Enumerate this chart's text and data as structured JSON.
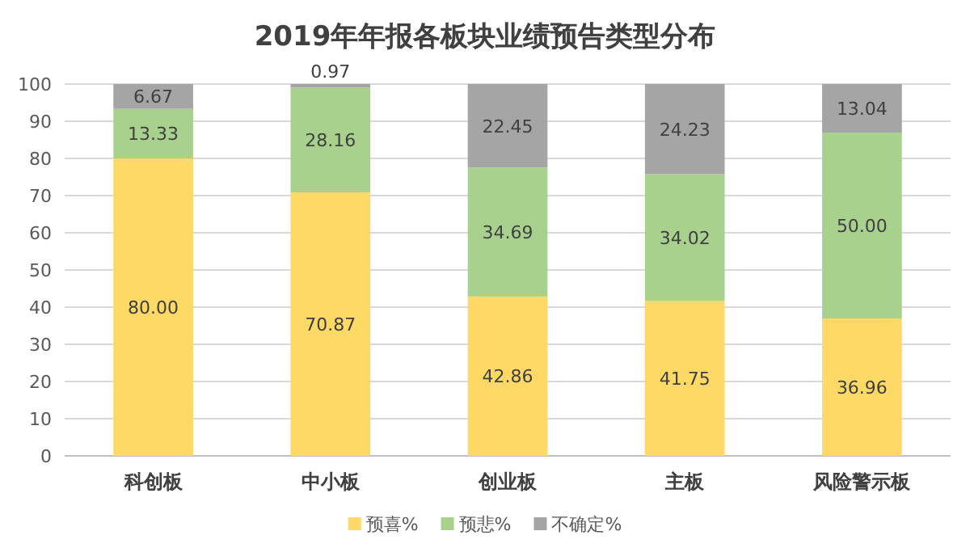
{
  "chart_data": {
    "type": "bar",
    "title": "2019年年报各板块业绩预告类型分布",
    "stacked": true,
    "categories": [
      "科创板",
      "中小板",
      "创业板",
      "主板",
      "风险警示板"
    ],
    "series": [
      {
        "name": "预喜%",
        "color": "#ffd966",
        "values": [
          80.0,
          70.87,
          42.86,
          41.75,
          36.96
        ],
        "value_labels": [
          "80.00",
          "70.87",
          "42.86",
          "41.75",
          "36.96"
        ]
      },
      {
        "name": "预悲%",
        "color": "#a9d18e",
        "values": [
          13.33,
          28.16,
          34.69,
          34.02,
          50.0
        ],
        "value_labels": [
          "13.33",
          "28.16",
          "34.69",
          "34.02",
          "50.00"
        ]
      },
      {
        "name": "不确定%",
        "color": "#a5a5a5",
        "values": [
          6.67,
          0.97,
          22.45,
          24.23,
          13.04
        ],
        "value_labels": [
          "6.67",
          "0.97",
          "22.45",
          "24.23",
          "13.04"
        ]
      }
    ],
    "ylim": [
      0,
      100
    ],
    "yticks": [
      0,
      10,
      20,
      30,
      40,
      50,
      60,
      70,
      80,
      90,
      100
    ],
    "grid": "y",
    "legend": "bottom"
  }
}
